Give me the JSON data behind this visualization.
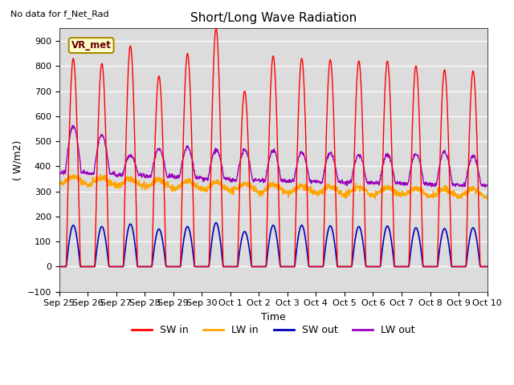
{
  "title": "Short/Long Wave Radiation",
  "top_left_text": "No data for f_Net_Rad",
  "legend_box_text": "VR_met",
  "ylabel": "( W/m2)",
  "xlabel": "Time",
  "ylim": [
    -100,
    950
  ],
  "yticks": [
    -100,
    0,
    100,
    200,
    300,
    400,
    500,
    600,
    700,
    800,
    900
  ],
  "bg_color": "#dcdcdc",
  "fig_color": "#ffffff",
  "sw_in_color": "#ff0000",
  "lw_in_color": "#ffa500",
  "sw_out_color": "#0000bb",
  "lw_out_color": "#9900bb",
  "n_days": 15,
  "x_tick_labels": [
    "Sep 25",
    "Sep 26",
    "Sep 27",
    "Sep 28",
    "Sep 29",
    "Sep 30",
    "Oct 1",
    "Oct 2",
    "Oct 3",
    "Oct 4",
    "Oct 5",
    "Oct 6",
    "Oct 7",
    "Oct 8",
    "Oct 9",
    "Oct 10"
  ],
  "legend_labels": [
    "SW in",
    "LW in",
    "SW out",
    "LW out"
  ],
  "peaks_sw_in": [
    830,
    810,
    880,
    760,
    850,
    950,
    700,
    840,
    830,
    825,
    820,
    820,
    800,
    785,
    780
  ],
  "peaks_sw_out": [
    165,
    160,
    170,
    150,
    160,
    175,
    140,
    165,
    165,
    163,
    160,
    162,
    155,
    152,
    155
  ],
  "lw_in_base": [
    345,
    340,
    335,
    330,
    325,
    320,
    315,
    310,
    308,
    305,
    302,
    300,
    298,
    295,
    293
  ],
  "lw_out_base": [
    375,
    370,
    365,
    360,
    355,
    350,
    345,
    342,
    340,
    338,
    335,
    333,
    330,
    328,
    325
  ],
  "lw_out_day_peak": [
    185,
    155,
    80,
    110,
    120,
    115,
    120,
    120,
    115,
    115,
    110,
    115,
    120,
    130,
    115
  ]
}
